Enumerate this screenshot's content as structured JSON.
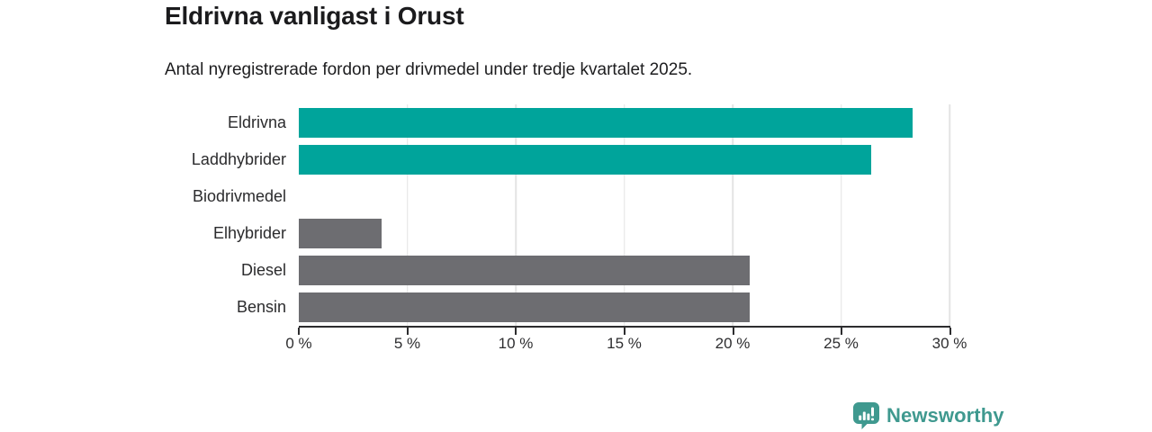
{
  "header": {
    "title": "Eldrivna vanligast i Orust",
    "subtitle": "Antal nyregistrerade fordon per drivmedel under tredje kvartalet 2025."
  },
  "chart_data": {
    "type": "bar",
    "orientation": "horizontal",
    "title": "Eldrivna vanligast i Orust",
    "subtitle": "Antal nyregistrerade fordon per drivmedel under tredje kvartalet 2025.",
    "categories": [
      "Eldrivna",
      "Laddhybrider",
      "Biodrivmedel",
      "Elhybrider",
      "Diesel",
      "Bensin"
    ],
    "values": [
      28.3,
      26.4,
      0,
      3.8,
      20.8,
      20.8
    ],
    "unit": "%",
    "xlim": [
      0,
      30
    ],
    "x_ticks": [
      0,
      5,
      10,
      15,
      20,
      25,
      30
    ],
    "x_tick_labels": [
      "0 %",
      "5 %",
      "10 %",
      "15 %",
      "20 %",
      "25 %",
      "30 %"
    ],
    "bar_colors": [
      "#00a49b",
      "#00a49b",
      "#6d6d71",
      "#6d6d71",
      "#6d6d71",
      "#6d6d71"
    ],
    "highlight_color": "#00a49b",
    "default_color": "#6d6d71",
    "grid": true,
    "gridline_color": "#e4e4e4",
    "axis_color": "#2d2d2f",
    "legend": "none"
  },
  "footer": {
    "brand_name": "Newsworthy",
    "logo_icon": "bar-chart-speech-bubble",
    "brand_color": "#3f998f"
  }
}
